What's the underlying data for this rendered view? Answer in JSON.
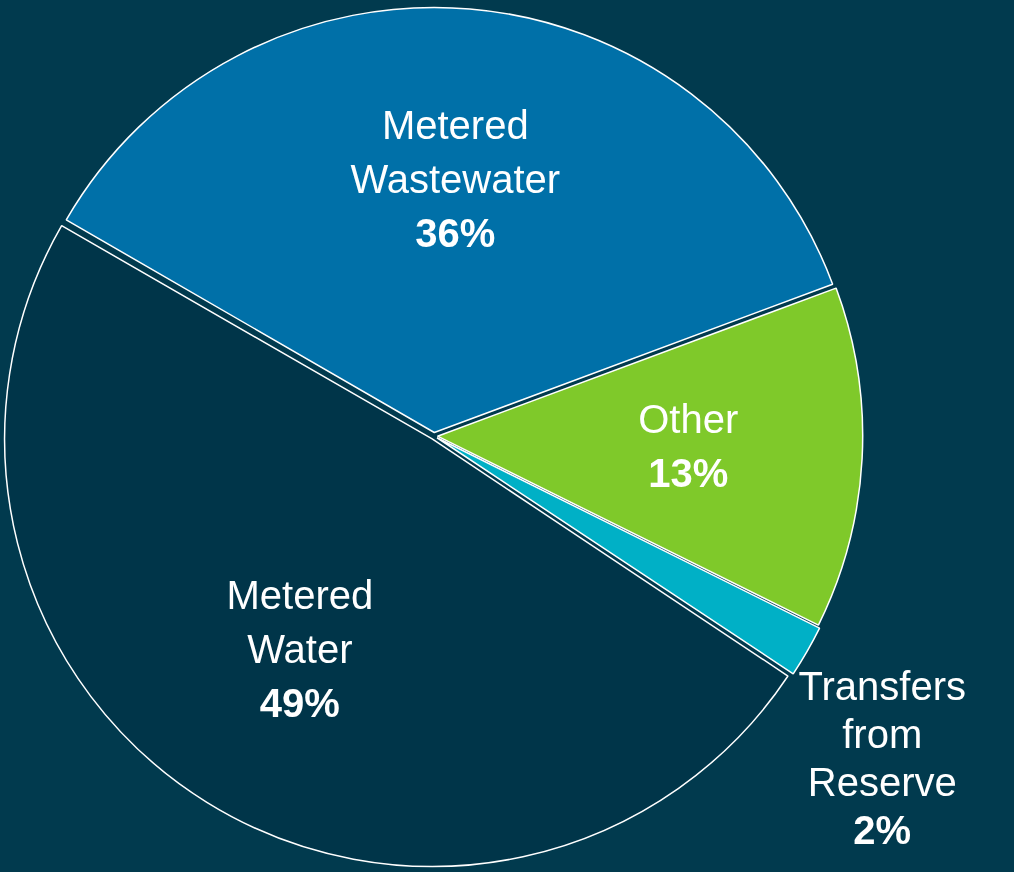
{
  "chart_data": {
    "type": "pie",
    "categories": [
      "Metered Wastewater",
      "Other",
      "Transfers from Reserve",
      "Metered Water"
    ],
    "values": [
      36,
      13,
      2,
      49
    ],
    "value_labels": [
      "36%",
      "13%",
      "2%",
      "49%"
    ],
    "colors": [
      "#0070a8",
      "#7fc92a",
      "#00b0c6",
      "#003549"
    ],
    "legend": false
  }
}
